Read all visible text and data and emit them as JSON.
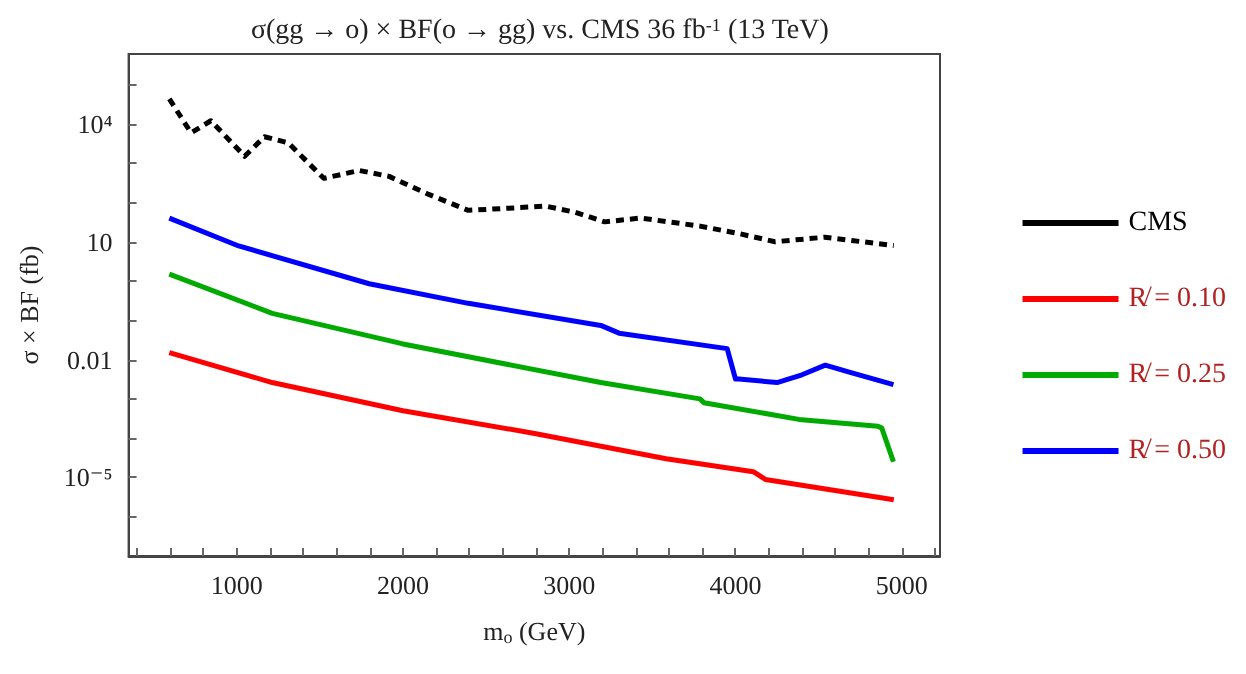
{
  "chart_data": {
    "type": "line",
    "title": "σ(gg → o) × BF(o → gg) vs. CMS 36 fb$^{-1}$ (13 TeV)",
    "xlabel": "m$_{o}$ (GeV)",
    "ylabel": "σ × BF (fb)",
    "log": "y",
    "xlim": [
      350,
      5230
    ],
    "ylim": [
      1e-07,
      600000.0
    ],
    "xticks": [
      {
        "value": 400,
        "label": null
      },
      {
        "value": 600,
        "label": null
      },
      {
        "value": 800,
        "label": null
      },
      1000,
      {
        "value": 1200,
        "label": null
      },
      {
        "value": 1400,
        "label": null
      },
      {
        "value": 1600,
        "label": null
      },
      {
        "value": 1800,
        "label": null
      },
      2000,
      {
        "value": 2200,
        "label": null
      },
      {
        "value": 2400,
        "label": null
      },
      {
        "value": 2600,
        "label": null
      },
      {
        "value": 2800,
        "label": null
      },
      3000,
      {
        "value": 3200,
        "label": null
      },
      {
        "value": 3400,
        "label": null
      },
      {
        "value": 3600,
        "label": null
      },
      {
        "value": 3800,
        "label": null
      },
      4000,
      {
        "value": 4200,
        "label": null
      },
      {
        "value": 4400,
        "label": null
      },
      {
        "value": 4600,
        "label": null
      },
      {
        "value": 4800,
        "label": null
      },
      5000,
      {
        "value": 5200,
        "label": null
      }
    ],
    "yticks": [
      {
        "value": 1e-06,
        "label": null
      },
      {
        "value": 1e-05,
        "label": "10⁻⁵"
      },
      {
        "value": 0.0001,
        "label": null
      },
      {
        "value": 0.001,
        "label": null
      },
      0.01,
      {
        "value": 0.1,
        "label": null
      },
      {
        "value": 1,
        "label": null
      },
      10,
      {
        "value": 100,
        "label": null
      },
      {
        "value": 1000,
        "label": null
      },
      {
        "value": 10000,
        "label": "10⁴"
      },
      {
        "value": 100000,
        "label": null
      }
    ],
    "grid": false,
    "legend": "right",
    "marker": "none",
    "series": [
      {
        "name": "CMS",
        "color": "#000000",
        "line_style": "dashed",
        "x": [
          595,
          726,
          845,
          1048,
          1167,
          1310,
          1524,
          1738,
          1917,
          2155,
          2393,
          2631,
          2857,
          3036,
          3214,
          3429,
          3786,
          4024,
          4238,
          4536,
          4952
        ],
        "values": [
          43000,
          5900,
          12000,
          1500,
          4700,
          3300,
          410,
          650,
          460,
          160,
          63,
          71,
          81,
          56,
          32,
          40,
          25,
          16,
          10,
          13,
          8
        ]
      },
      {
        "name": "R̸ = 0.10",
        "color": "#ff0000",
        "line_style": "solid",
        "x": [
          595,
          1214,
          2000,
          2800,
          3583,
          4107,
          4180,
          4952
        ],
        "values": [
          0.015,
          0.0026,
          0.0005,
          0.00013,
          3e-05,
          1.4e-05,
          8.9e-06,
          2.7e-06
        ]
      },
      {
        "name": "R̸ = 0.25",
        "color": "#00aa00",
        "line_style": "solid",
        "x": [
          595,
          1214,
          2000,
          3190,
          3786,
          3810,
          4381,
          4857,
          4880,
          4950
        ],
        "values": [
          1.5,
          0.15,
          0.025,
          0.0026,
          0.001,
          0.0008,
          0.0003,
          0.0002,
          0.00018,
          2.5e-05
        ]
      },
      {
        "name": "R̸ = 0.50",
        "color": "#0000ff",
        "line_style": "solid",
        "x": [
          595,
          1012,
          1797,
          2393,
          3190,
          3300,
          3950,
          4000,
          4020,
          4250,
          4400,
          4540,
          4700,
          4950
        ],
        "values": [
          40,
          7.8,
          0.85,
          0.27,
          0.074,
          0.047,
          0.019,
          0.0032,
          0.0032,
          0.0026,
          0.0041,
          0.0072,
          0.0046,
          0.0023
        ]
      }
    ]
  }
}
